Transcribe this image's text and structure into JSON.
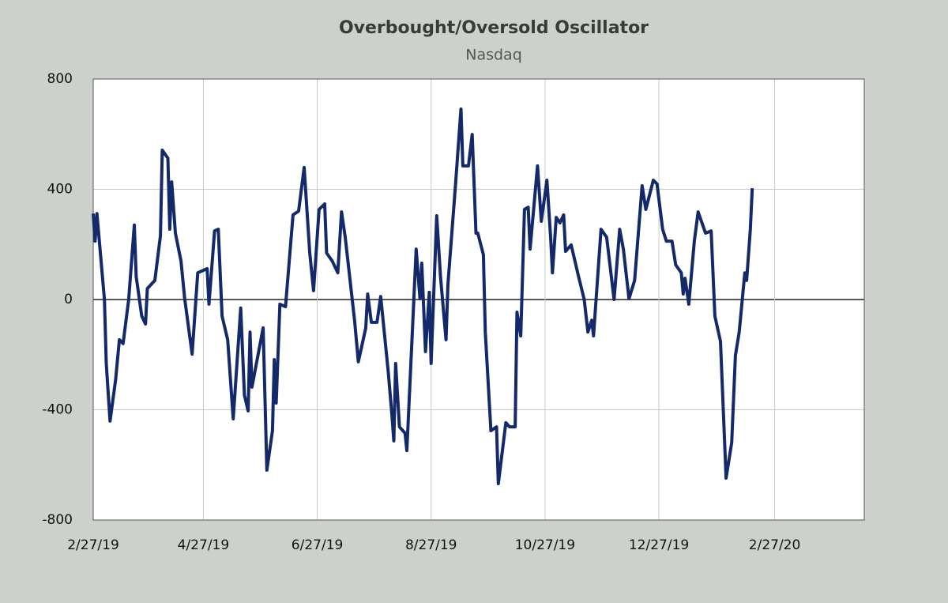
{
  "chart_data": {
    "type": "line",
    "title": "Overbought/Oversold  Oscillator",
    "subtitle": "Nasdaq",
    "x": [
      "2/27/19",
      "2/28/19",
      "3/1/19",
      "3/5/19",
      "3/6/19",
      "3/8/19",
      "3/11/19",
      "3/13/19",
      "3/15/19",
      "3/18/19",
      "3/21/19",
      "3/22/19",
      "3/25/19",
      "3/27/19",
      "3/28/19",
      "4/1/19",
      "4/4/19",
      "4/5/19",
      "4/8/19",
      "4/9/19",
      "4/10/19",
      "4/12/19",
      "4/15/19",
      "4/17/19",
      "4/21/19",
      "4/24/19",
      "4/29/19",
      "4/30/19",
      "5/3/19",
      "5/5/19",
      "5/7/19",
      "5/10/19",
      "5/13/19",
      "5/17/19",
      "5/19/19",
      "5/21/19",
      "5/22/19",
      "5/23/19",
      "5/29/19",
      "5/31/19",
      "6/3/19",
      "6/4/19",
      "6/5/19",
      "6/7/19",
      "6/10/19",
      "6/14/19",
      "6/17/19",
      "6/20/19",
      "6/23/19",
      "6/25/19",
      "6/28/19",
      "7/1/19",
      "7/2/19",
      "7/5/19",
      "7/8/19",
      "7/10/19",
      "7/12/19",
      "7/17/19",
      "7/19/19",
      "7/23/19",
      "7/24/19",
      "7/26/19",
      "7/29/19",
      "7/31/19",
      "8/4/19",
      "8/6/19",
      "8/7/19",
      "8/8/19",
      "8/10/19",
      "8/13/19",
      "8/14/19",
      "8/19/19",
      "8/21/19",
      "8/22/19",
      "8/24/19",
      "8/26/19",
      "8/27/19",
      "8/30/19",
      "9/1/19",
      "9/4/19",
      "9/5/19",
      "9/9/19",
      "9/12/19",
      "9/13/19",
      "9/16/19",
      "9/18/19",
      "9/20/19",
      "9/21/19",
      "9/24/19",
      "9/25/19",
      "9/28/19",
      "10/1/19",
      "10/2/19",
      "10/6/19",
      "10/8/19",
      "10/11/19",
      "10/12/19",
      "10/14/19",
      "10/16/19",
      "10/18/19",
      "10/19/19",
      "10/23/19",
      "10/25/19",
      "10/28/19",
      "10/30/19",
      "10/31/19",
      "11/2/19",
      "11/4/19",
      "11/6/19",
      "11/7/19",
      "11/10/19",
      "11/14/19",
      "11/17/19",
      "11/19/19",
      "11/21/19",
      "11/22/19",
      "11/26/19",
      "11/29/19",
      "12/3/19",
      "12/6/19",
      "12/8/19",
      "12/11/19",
      "12/14/19",
      "12/18/19",
      "12/20/19",
      "12/24/19",
      "12/26/19",
      "12/29/19",
      "12/31/19",
      "1/3/20",
      "1/5/20",
      "1/8/20",
      "1/9/20",
      "1/10/20",
      "1/12/20",
      "1/15/20",
      "1/17/20",
      "1/21/20",
      "1/24/20",
      "1/26/20",
      "1/29/20",
      "2/1/20",
      "2/4/20",
      "2/6/20",
      "2/8/20",
      "2/11/20",
      "2/12/20",
      "2/14/20",
      "2/15/20"
    ],
    "series": [
      {
        "color": "#14296a",
        "values": [
          312,
          212,
          312,
          0,
          -232,
          -441,
          -290,
          -146,
          -160,
          0,
          270,
          83,
          -60,
          -89,
          40,
          69,
          232,
          542,
          513,
          255,
          427,
          241,
          140,
          3,
          -198,
          97,
          112,
          -17,
          249,
          255,
          -60,
          -146,
          -433,
          -31,
          -347,
          -404,
          -118,
          -318,
          -103,
          -619,
          -476,
          -218,
          -376,
          -17,
          -26,
          307,
          321,
          479,
          169,
          32,
          327,
          347,
          169,
          140,
          97,
          318,
          226,
          -75,
          -226,
          -103,
          20,
          -83,
          -83,
          11,
          -261,
          -419,
          -513,
          -232,
          -462,
          -485,
          -548,
          183,
          3,
          132,
          -189,
          26,
          -232,
          304,
          83,
          -146,
          55,
          413,
          691,
          485,
          485,
          599,
          241,
          241,
          163,
          -118,
          -476,
          -462,
          -668,
          -447,
          -462,
          -462,
          -46,
          -132,
          327,
          335,
          183,
          485,
          284,
          433,
          226,
          97,
          298,
          278,
          307,
          175,
          198,
          83,
          0,
          -118,
          -75,
          -132,
          255,
          226,
          0,
          255,
          183,
          3,
          69,
          413,
          327,
          433,
          419,
          255,
          212,
          212,
          126,
          97,
          20,
          77,
          -17,
          212,
          318,
          241,
          249,
          -60,
          -152,
          -648,
          -519,
          -203,
          -118,
          97,
          69,
          255,
          404
        ]
      }
    ],
    "xlim": [
      "2/27/19",
      "4/15/20"
    ],
    "xticks": [
      "2/27/19",
      "4/27/19",
      "6/27/19",
      "8/27/19",
      "10/27/19",
      "12/27/19",
      "2/27/20"
    ],
    "ylim": [
      -800,
      800
    ],
    "yticks": [
      800,
      400,
      0,
      -400,
      -800
    ],
    "grid": true
  }
}
